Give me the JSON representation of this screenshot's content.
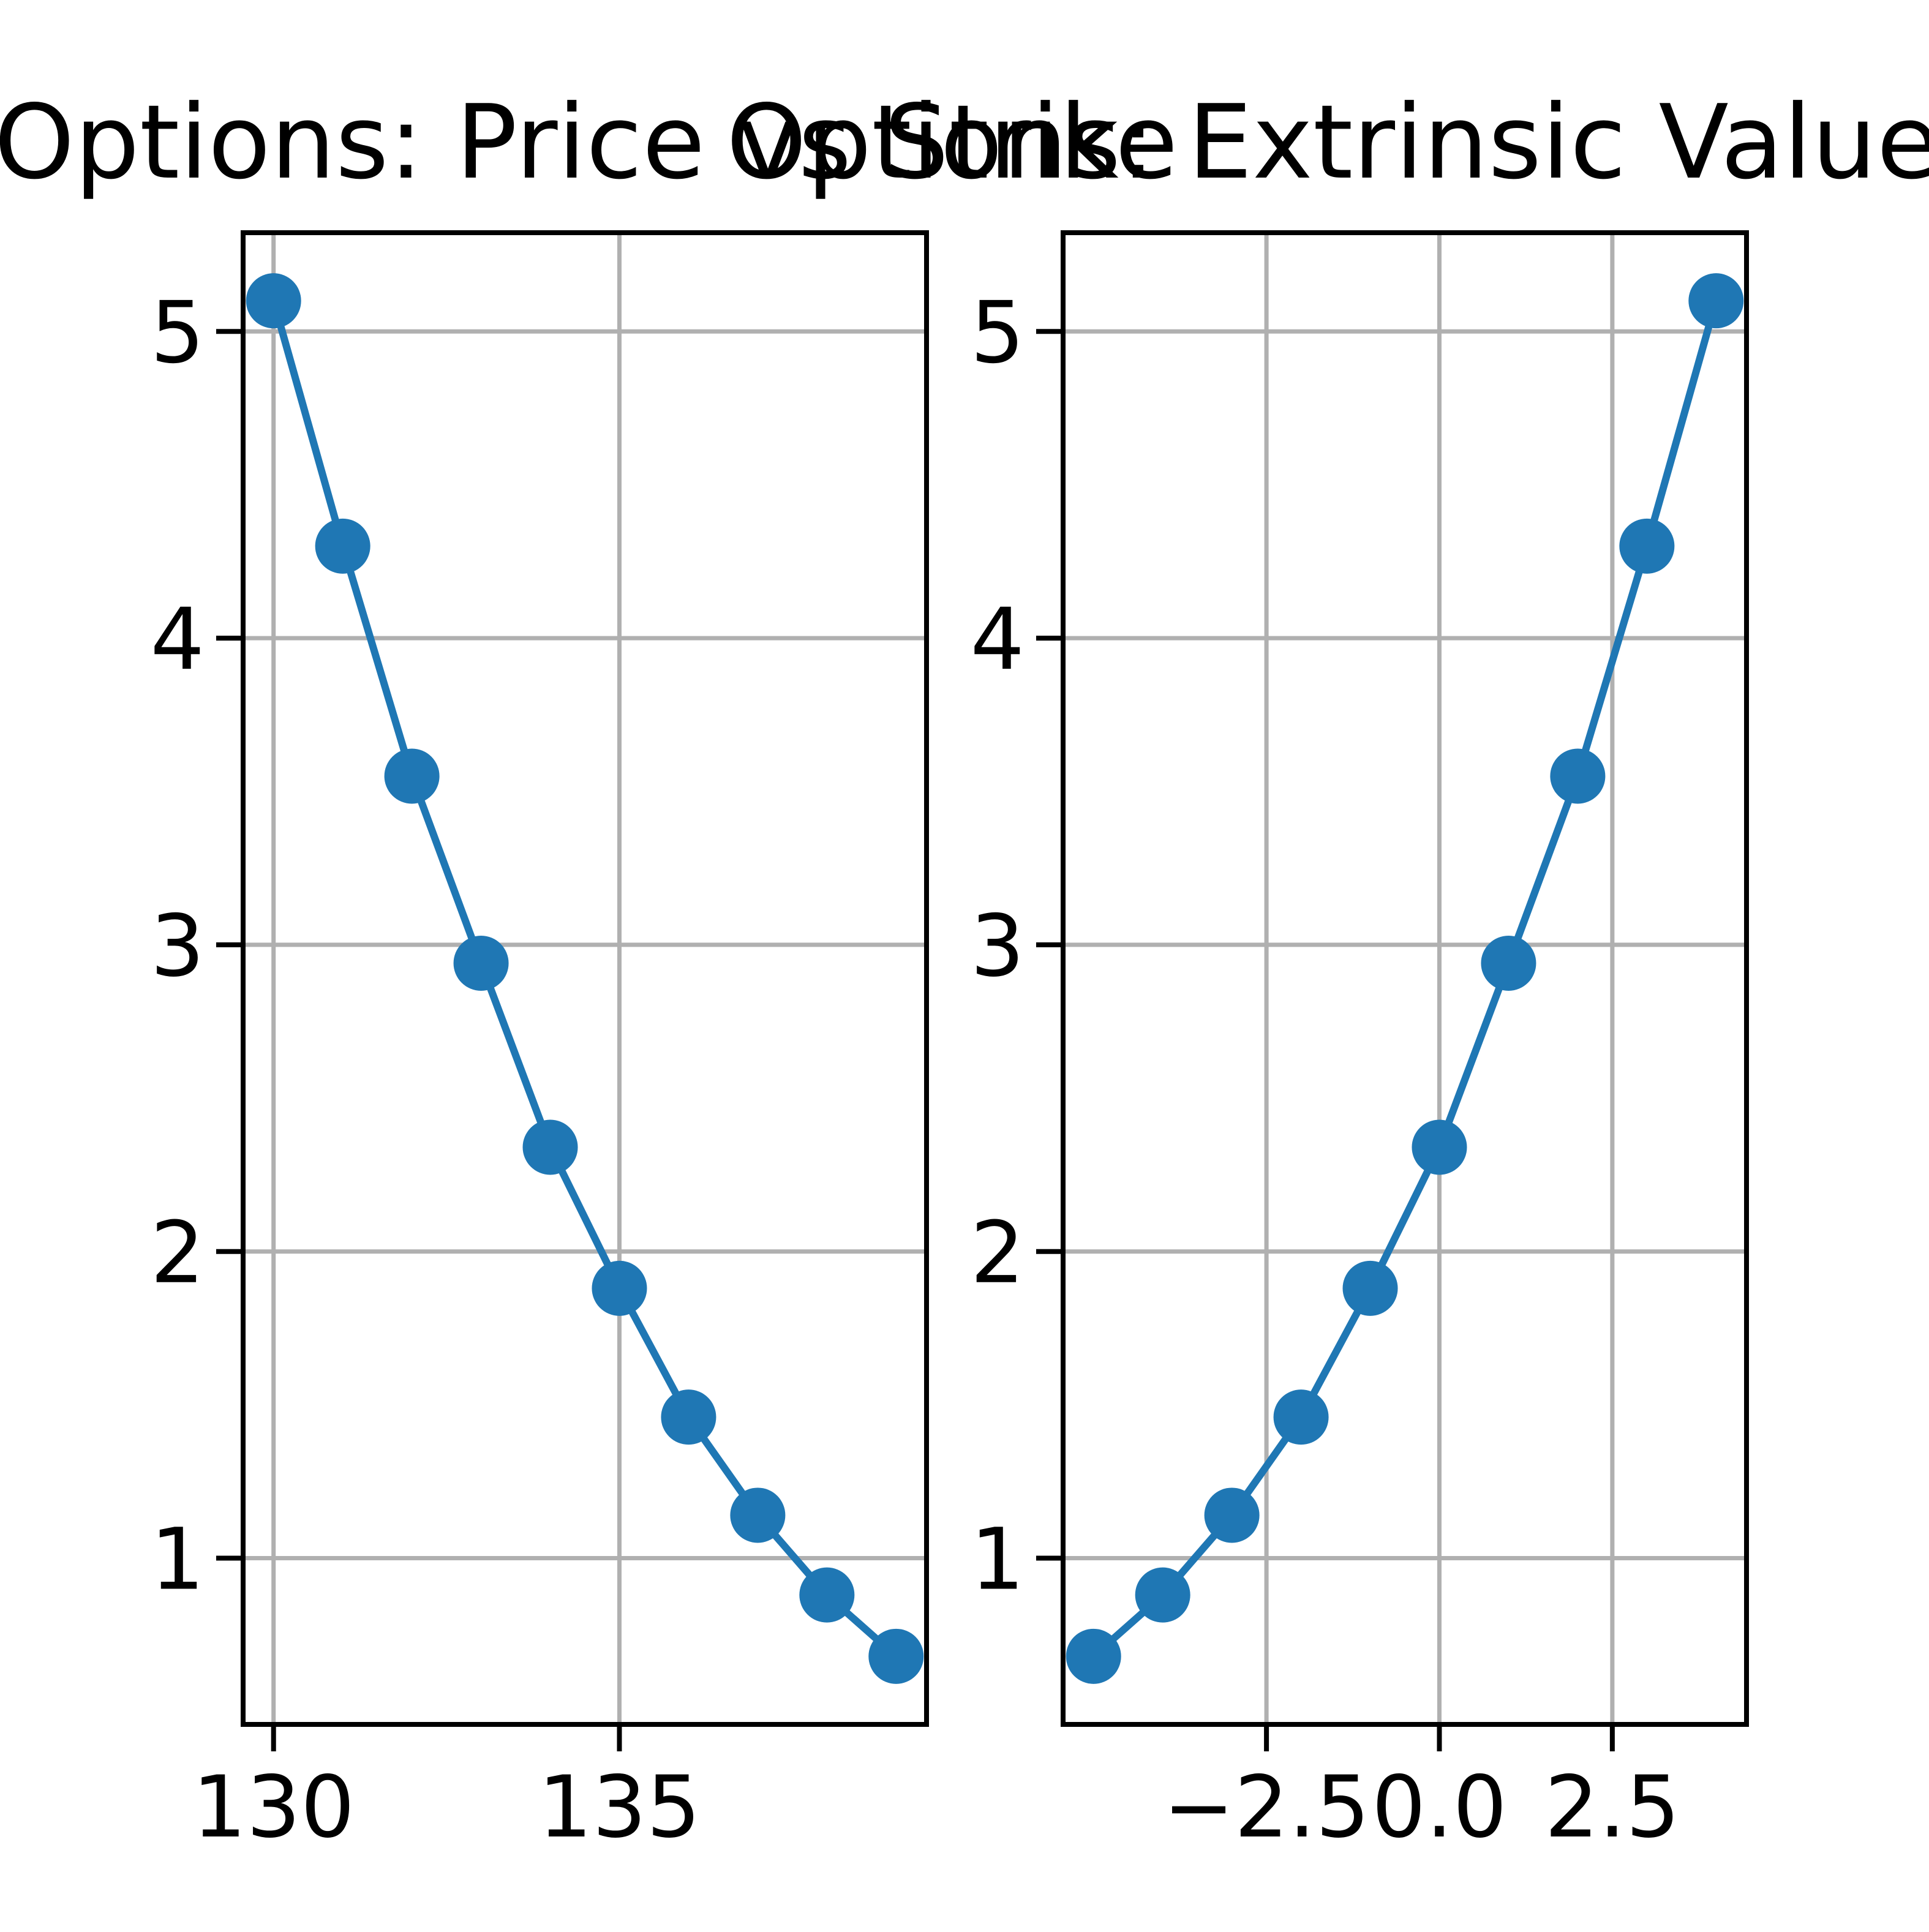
{
  "chart_data": [
    {
      "type": "line",
      "title": "Options: Price vs Strike",
      "xlabel": "",
      "ylabel": "",
      "x": [
        130,
        131,
        132,
        133,
        134,
        135,
        136,
        137,
        138,
        139
      ],
      "series": [
        {
          "values": [
            5.1,
            4.3,
            3.55,
            2.94,
            2.34,
            1.88,
            1.46,
            1.14,
            0.88,
            0.68
          ]
        }
      ],
      "xlim": [
        129.56,
        139.44
      ],
      "ylim": [
        0.458,
        5.322
      ],
      "xticks": [
        130,
        135
      ],
      "xtick_labels": [
        "130",
        "135"
      ],
      "yticks": [
        1,
        2,
        3,
        4,
        5
      ],
      "ytick_labels": [
        "1",
        "2",
        "3",
        "4",
        "5"
      ],
      "grid": true,
      "color": "#1f77b4"
    },
    {
      "type": "line",
      "title": "Options: Extrinsic Value vs",
      "xlabel": "",
      "ylabel": "",
      "x": [
        -5,
        -4,
        -3,
        -2,
        -1,
        0,
        1,
        2,
        3,
        4
      ],
      "series": [
        {
          "values": [
            0.68,
            0.88,
            1.14,
            1.46,
            1.88,
            2.34,
            2.94,
            3.55,
            4.3,
            5.1
          ]
        }
      ],
      "xlim": [
        -5.44,
        4.44
      ],
      "ylim": [
        0.458,
        5.322
      ],
      "xticks": [
        -2.5,
        0.0,
        2.5
      ],
      "xtick_labels": [
        "−2.5",
        "0.0",
        "2.5"
      ],
      "yticks": [
        1,
        2,
        3,
        4,
        5
      ],
      "ytick_labels": [
        "1",
        "2",
        "3",
        "4",
        "5"
      ],
      "grid": true,
      "color": "#1f77b4"
    }
  ]
}
